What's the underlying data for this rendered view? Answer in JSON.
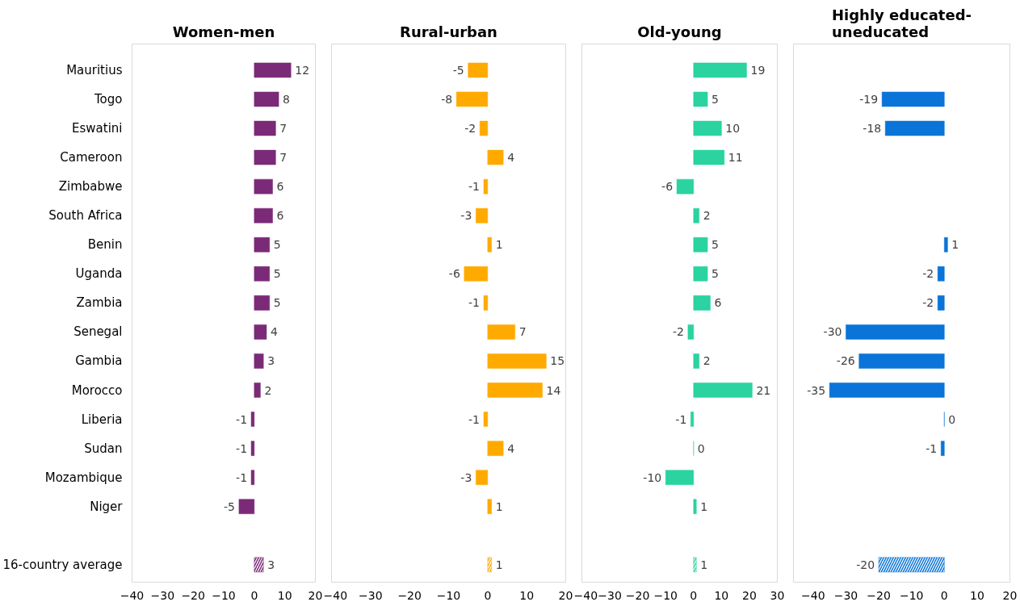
{
  "chart_data": [
    {
      "type": "bar",
      "orientation": "horizontal",
      "title": "Women-men",
      "categories": [
        "Mauritius",
        "Togo",
        "Eswatini",
        "Cameroon",
        "Zimbabwe",
        "South Africa",
        "Benin",
        "Uganda",
        "Zambia",
        "Senegal",
        "Gambia",
        "Morocco",
        "Liberia",
        "Sudan",
        "Mozambique",
        "Niger",
        null,
        "16-country average"
      ],
      "values": [
        12,
        8,
        7,
        7,
        6,
        6,
        5,
        5,
        5,
        4,
        3,
        2,
        -1,
        -1,
        -1,
        -5,
        null,
        3
      ],
      "color": "#7b2a78",
      "xlim": [
        -40,
        20
      ],
      "xticks": [
        -40,
        -30,
        -20,
        -10,
        0,
        10,
        20
      ],
      "data_labels": true,
      "grid": false,
      "tick_labels": "xy"
    },
    {
      "type": "bar",
      "orientation": "horizontal",
      "title": "Rural-urban",
      "categories": [
        null,
        null,
        null,
        null,
        null,
        null,
        null,
        null,
        null,
        null,
        null,
        null,
        null,
        null,
        null,
        null,
        null,
        null
      ],
      "values": [
        -5,
        -8,
        -2,
        4,
        -1,
        -3,
        1,
        -6,
        -1,
        7,
        15,
        14,
        -1,
        4,
        -3,
        1,
        null,
        1
      ],
      "color": "#ffaa00",
      "xlim": [
        -40,
        20
      ],
      "xticks": [
        -40,
        -30,
        -20,
        -10,
        0,
        10,
        20
      ],
      "data_labels": true,
      "grid": false,
      "tick_labels": "x"
    },
    {
      "type": "bar",
      "orientation": "horizontal",
      "title": "Old-young",
      "categories": [
        null,
        null,
        null,
        null,
        null,
        null,
        null,
        null,
        null,
        null,
        null,
        null,
        null,
        null,
        null,
        null,
        null,
        null
      ],
      "values": [
        19,
        5,
        10,
        11,
        -6,
        2,
        5,
        5,
        6,
        -2,
        2,
        21,
        -1,
        0,
        -10,
        1,
        null,
        1
      ],
      "color": "#2ad3a0",
      "xlim": [
        -40,
        30
      ],
      "xticks": [
        -40,
        -30,
        -20,
        -10,
        0,
        10,
        20,
        30
      ],
      "data_labels": true,
      "grid": false,
      "tick_labels": "x"
    },
    {
      "type": "bar",
      "orientation": "horizontal",
      "title": "Highly educated-\nuneducated",
      "categories": [
        null,
        null,
        null,
        null,
        null,
        null,
        null,
        null,
        null,
        null,
        null,
        null,
        null,
        null,
        null,
        null,
        null,
        null
      ],
      "values": [
        null,
        -19,
        -18,
        null,
        null,
        null,
        1,
        -2,
        -2,
        -30,
        -26,
        -35,
        0,
        -1,
        null,
        null,
        null,
        -20
      ],
      "color": "#0a74d8",
      "xlim": [
        -46,
        20
      ],
      "xticks": [
        -40,
        -30,
        -20,
        -10,
        0,
        10,
        20
      ],
      "data_labels": true,
      "grid": false,
      "tick_labels": "x"
    }
  ]
}
